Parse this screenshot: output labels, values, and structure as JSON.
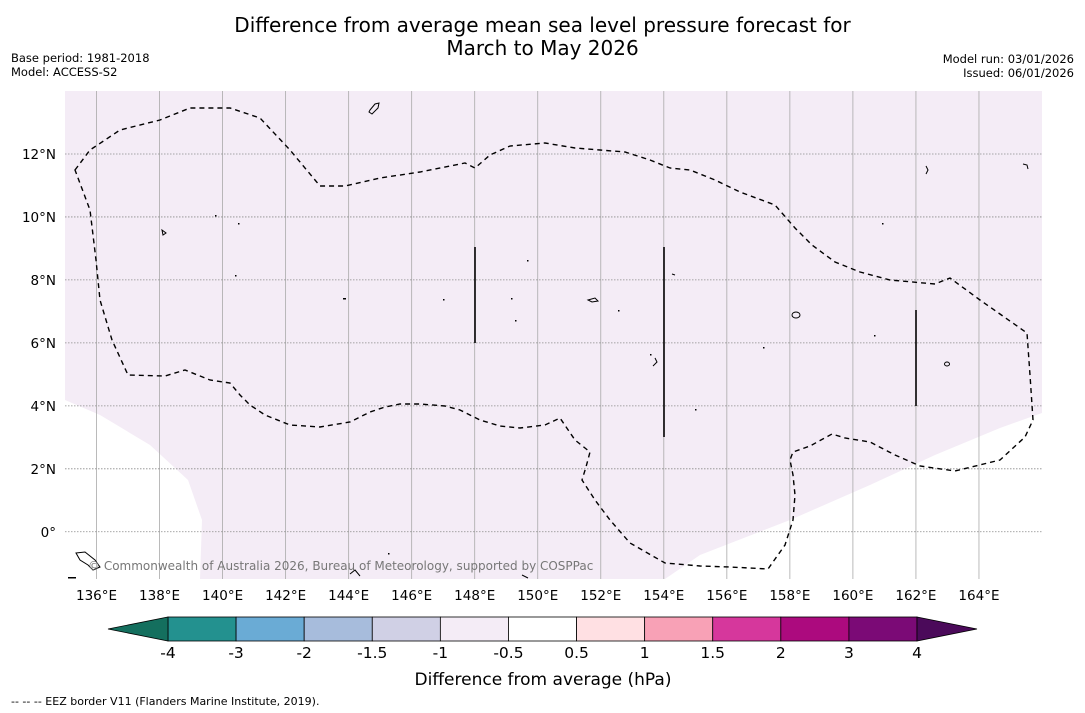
{
  "title": {
    "line1": "Difference from average mean sea level pressure forecast for",
    "line2": "March to May 2026"
  },
  "meta_left": {
    "base_period": "Base period: 1981-2018",
    "model": "Model: ACCESS-S2"
  },
  "meta_right": {
    "model_run": "Model run: 03/01/2026",
    "issued": "Issued: 06/01/2026"
  },
  "map": {
    "lon_range": [
      135,
      166
    ],
    "lat_range": [
      -1.5,
      14
    ],
    "lon_ticks": [
      136,
      138,
      140,
      142,
      144,
      146,
      148,
      150,
      152,
      154,
      156,
      158,
      160,
      162,
      164
    ],
    "lon_labels": [
      "136°E",
      "138°E",
      "140°E",
      "142°E",
      "144°E",
      "146°E",
      "148°E",
      "150°E",
      "152°E",
      "154°E",
      "156°E",
      "158°E",
      "160°E",
      "162°E",
      "164°E"
    ],
    "lat_ticks": [
      12,
      10,
      8,
      6,
      4,
      2,
      0
    ],
    "lat_labels": [
      "12°N",
      "10°N",
      "8°N",
      "6°N",
      "4°N",
      "2°N",
      "0°"
    ],
    "fill_category": "-1 to -0.5",
    "fill_color": "#f4ecf6",
    "copyright": "© Commonwealth of Australia 2026, Bureau of Meteorology, supported by COSPPac"
  },
  "colorbar": {
    "colors": [
      "#146f5e",
      "#23918f",
      "#6aabd5",
      "#a7bcdc",
      "#d0d0e5",
      "#f4ecf6",
      "#ffffff",
      "#ffe0e3",
      "#f8a1b6",
      "#d6379c",
      "#ac0a7e",
      "#7b0a76",
      "#4b0a5a"
    ],
    "tick_labels": [
      "-4",
      "-3",
      "-2",
      "-1.5",
      "-1",
      "-0.5",
      "0.5",
      "1",
      "1.5",
      "2",
      "3",
      "4"
    ],
    "label": "Difference from average (hPa)"
  },
  "footnote": "--  --  -- EEZ border V11 (Flanders Marine Institute, 2019)."
}
